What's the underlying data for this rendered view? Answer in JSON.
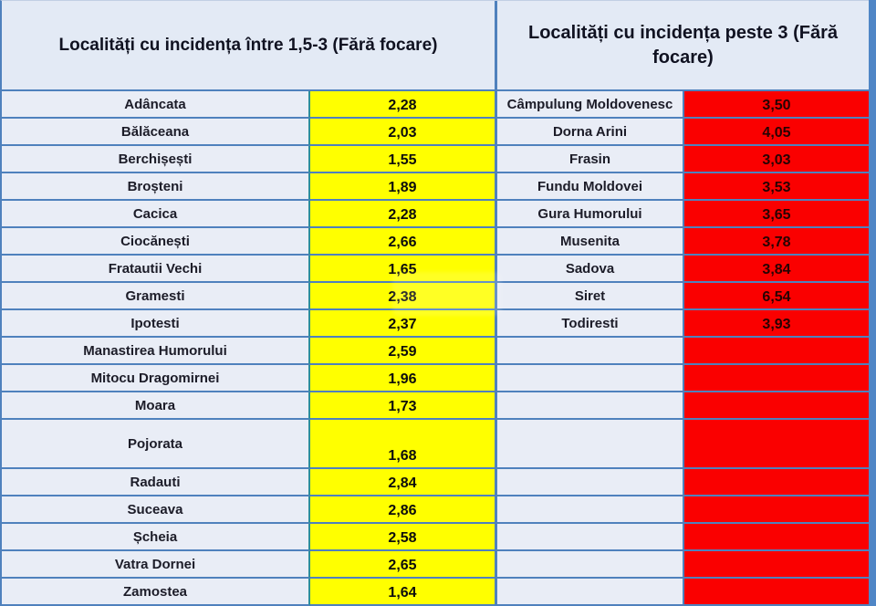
{
  "colors": {
    "yellow_cell": "#ffff00",
    "red_cell": "#fa0000",
    "border_blue": "#4f81bd",
    "name_cell_bg": "#e9edf6",
    "header_bg": "#e3eaf5",
    "right_strip": "#4f86c6"
  },
  "chart_data": [
    {
      "type": "table",
      "title": "Localități cu incidența între 1,5-3 (Fără focare)",
      "value_color": "#ffff00",
      "rows": [
        [
          "Adâncata",
          "2,28"
        ],
        [
          "Bălăceana",
          "2,03"
        ],
        [
          "Berchișești",
          "1,55"
        ],
        [
          "Broșteni",
          "1,89"
        ],
        [
          "Cacica",
          "2,28"
        ],
        [
          "Ciocănești",
          "2,66"
        ],
        [
          "Fratautii Vechi",
          "1,65"
        ],
        [
          "Gramesti",
          "2,38"
        ],
        [
          "Ipotesti",
          "2,37"
        ],
        [
          "Manastirea Humorului",
          "2,59"
        ],
        [
          "Mitocu Dragomirnei",
          "1,96"
        ],
        [
          "Moara",
          "1,73"
        ],
        [
          "Pojorata",
          "1,68"
        ],
        [
          "Radauti",
          "2,84"
        ],
        [
          "Suceava",
          "2,86"
        ],
        [
          "Șcheia",
          "2,58"
        ],
        [
          "Vatra Dornei",
          "2,65"
        ],
        [
          "Zamostea",
          "1,64"
        ]
      ]
    },
    {
      "type": "table",
      "title": "Localități cu incidența peste 3 (Fără focare)",
      "value_color": "#fa0000",
      "rows": [
        [
          "Câmpulung Moldovenesc",
          "3,50"
        ],
        [
          "Dorna Arini",
          "4,05"
        ],
        [
          "Frasin",
          "3,03"
        ],
        [
          "Fundu Moldovei",
          "3,53"
        ],
        [
          "Gura Humorului",
          "3,65"
        ],
        [
          "Musenita",
          "3,78"
        ],
        [
          "Sadova",
          "3,84"
        ],
        [
          "Siret",
          "6,54"
        ],
        [
          "Todiresti",
          "3,93"
        ],
        [
          "",
          ""
        ],
        [
          "",
          ""
        ],
        [
          "",
          ""
        ],
        [
          "",
          ""
        ],
        [
          "",
          ""
        ],
        [
          "",
          ""
        ],
        [
          "",
          ""
        ],
        [
          "",
          ""
        ],
        [
          "",
          ""
        ]
      ]
    }
  ]
}
